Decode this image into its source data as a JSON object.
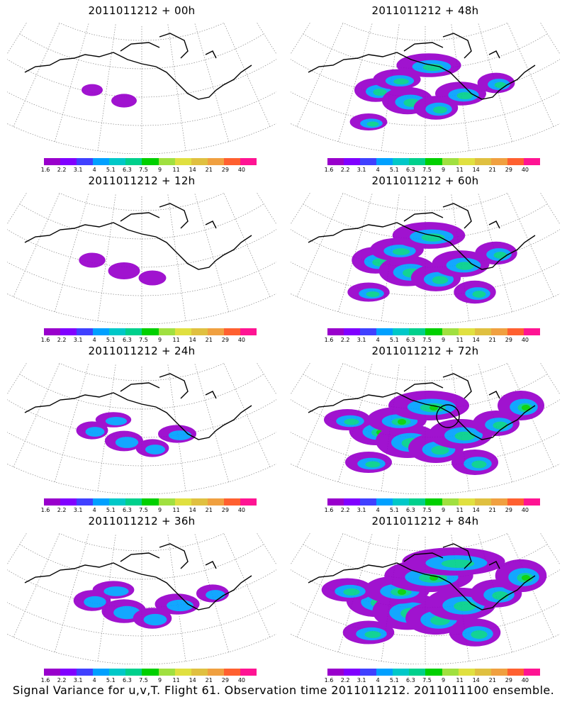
{
  "panels": [
    {
      "title": "2011011212 + 00h",
      "level": 0
    },
    {
      "title": "2011011212 + 48h",
      "level": 4
    },
    {
      "title": "2011011212 + 12h",
      "level": 1
    },
    {
      "title": "2011011212 + 60h",
      "level": 5
    },
    {
      "title": "2011011212 + 24h",
      "level": 2
    },
    {
      "title": "2011011212 + 72h",
      "level": 6
    },
    {
      "title": "2011011212 + 36h",
      "level": 3
    },
    {
      "title": "2011011212 + 84h",
      "level": 7
    }
  ],
  "colorbar": {
    "labels": [
      "1.6",
      "2.2",
      "3.1",
      "4",
      "5.1",
      "6.3",
      "7.5",
      "9",
      "11",
      "14",
      "21",
      "29",
      "40"
    ],
    "colors": [
      "#9900cc",
      "#8000ff",
      "#4040ff",
      "#00a0ff",
      "#00c8c8",
      "#00d08c",
      "#00d000",
      "#a0e040",
      "#e0e040",
      "#e0c040",
      "#f0a040",
      "#ff6030",
      "#ff1493"
    ]
  },
  "caption": "Signal Variance for u,v,T. Flight 61. Observation time 2011011212. 2011011100 ensemble.",
  "colors": {
    "map_line": "#000000",
    "grid": "#888888"
  }
}
